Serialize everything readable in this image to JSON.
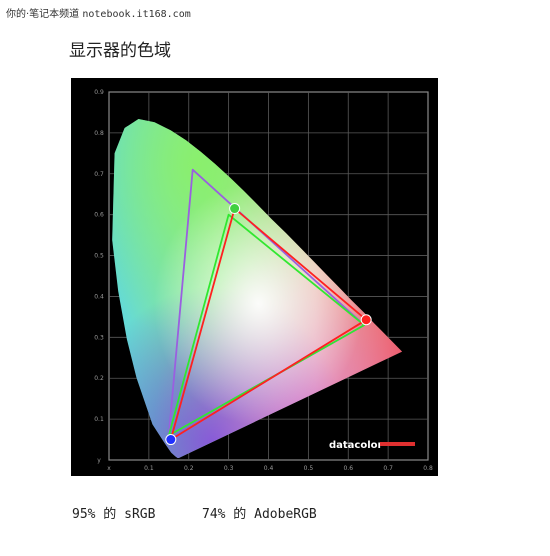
{
  "header": {
    "watermark_prefix": "你的·笔记本频道",
    "watermark_site": "notebook.it168.com",
    "title": "显示器的色域"
  },
  "captions": {
    "srgb": "95% 的 sRGB",
    "adobergb": "74% 的 AdobeRGB"
  },
  "logo": {
    "text": "datacolor"
  },
  "colors": {
    "background": "#000000",
    "measured_triangle": "#ff2020",
    "srgb_triangle": "#30e830",
    "adobergb_triangle": "#9a5fe0",
    "logo_bar": "#e03030"
  },
  "chart_data": {
    "type": "scatter",
    "title": "",
    "xlabel": "",
    "ylabel": "",
    "xlim": [
      0,
      0.8
    ],
    "ylim": [
      0,
      0.9
    ],
    "grid": true,
    "x_ticks": [
      "x",
      "0.1",
      "0.2",
      "0.3",
      "0.4",
      "0.5",
      "0.6",
      "0.7",
      "0.8"
    ],
    "y_ticks": [
      "y",
      "0.1",
      "0.2",
      "0.3",
      "0.4",
      "0.5",
      "0.6",
      "0.7",
      "0.8",
      "0.9"
    ],
    "spectral_locus": [
      [
        0.175,
        0.005
      ],
      [
        0.174,
        0.005
      ],
      [
        0.172,
        0.005
      ],
      [
        0.166,
        0.009
      ],
      [
        0.156,
        0.018
      ],
      [
        0.139,
        0.042
      ],
      [
        0.109,
        0.087
      ],
      [
        0.069,
        0.201
      ],
      [
        0.045,
        0.295
      ],
      [
        0.023,
        0.413
      ],
      [
        0.008,
        0.538
      ],
      [
        0.014,
        0.75
      ],
      [
        0.039,
        0.812
      ],
      [
        0.074,
        0.834
      ],
      [
        0.114,
        0.826
      ],
      [
        0.155,
        0.806
      ],
      [
        0.193,
        0.782
      ],
      [
        0.23,
        0.754
      ],
      [
        0.266,
        0.724
      ],
      [
        0.302,
        0.692
      ],
      [
        0.337,
        0.659
      ],
      [
        0.373,
        0.624
      ],
      [
        0.408,
        0.589
      ],
      [
        0.444,
        0.555
      ],
      [
        0.479,
        0.52
      ],
      [
        0.512,
        0.487
      ],
      [
        0.547,
        0.452
      ],
      [
        0.575,
        0.424
      ],
      [
        0.608,
        0.391
      ],
      [
        0.64,
        0.36
      ],
      [
        0.665,
        0.334
      ],
      [
        0.685,
        0.315
      ],
      [
        0.735,
        0.265
      ]
    ],
    "series": [
      {
        "name": "",
        "points": [
          [
            0.155,
            0.05
          ],
          [
            0.315,
            0.615
          ],
          [
            0.645,
            0.343
          ]
        ],
        "closed": true
      },
      {
        "name": "sRGB",
        "points": [
          [
            0.15,
            0.06
          ],
          [
            0.3,
            0.6
          ],
          [
            0.64,
            0.33
          ]
        ],
        "closed": true
      },
      {
        "name": "AdobeRGB",
        "points": [
          [
            0.15,
            0.06
          ],
          [
            0.21,
            0.71
          ],
          [
            0.64,
            0.33
          ]
        ],
        "closed": true
      }
    ],
    "primaries": [
      {
        "name": "red",
        "x": 0.645,
        "y": 0.343,
        "color": "#ff2020"
      },
      {
        "name": "green",
        "x": 0.315,
        "y": 0.615,
        "color": "#40d040"
      },
      {
        "name": "blue",
        "x": 0.155,
        "y": 0.05,
        "color": "#2030ff"
      }
    ]
  }
}
